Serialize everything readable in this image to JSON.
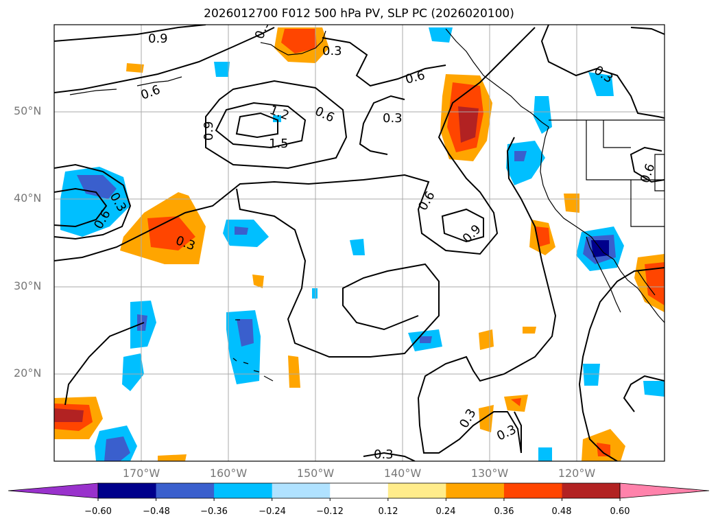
{
  "title": "2026012700 F012 500 hPa PV, SLP PC (2026020100)",
  "lat_labels": [
    "50°N",
    "40°N",
    "30°N",
    "20°N"
  ],
  "lon_labels": [
    "170°W",
    "160°W",
    "150°W",
    "140°W",
    "130°W",
    "120°W"
  ],
  "contour_labels": [
    "0.9",
    "0.6",
    "0.3",
    "0.6",
    "0.3",
    "1.2",
    "0.6",
    "0.3",
    "1.5",
    "0.9",
    "0.3",
    "0.6",
    "0.6",
    "0.9",
    "0.3",
    "0.3",
    "0.3",
    "0.3",
    "0.6",
    "0.3"
  ],
  "colorbar": {
    "ticks": [
      "−0.60",
      "−0.48",
      "−0.36",
      "−0.24",
      "−0.12",
      "0.12",
      "0.24",
      "0.36",
      "0.48",
      "0.60"
    ],
    "colors": [
      "#9932cc",
      "#00008b",
      "#3a5fcd",
      "#00bfff",
      "#b0e2ff",
      "#ffffff",
      "#ffec8b",
      "#ffa500",
      "#ff4500",
      "#b22222",
      "#ff82ab"
    ]
  }
}
